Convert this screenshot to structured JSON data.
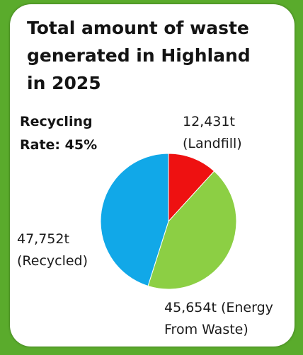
{
  "title": {
    "line1": "Total amount of waste",
    "line2": "generated in Highland",
    "line3": "in 2025"
  },
  "recycling_rate": {
    "line1": "Recycling",
    "line2": "Rate: 45%"
  },
  "colors": {
    "background": "#5aab2c",
    "landfill": "#ee1111",
    "energy_from_waste": "#8ccf44",
    "recycled": "#11a8e8"
  },
  "chart_data": {
    "type": "pie",
    "slices": [
      {
        "label_value": "12,431t",
        "label_name": "(Landfill)",
        "value": 12431,
        "color": "#ee1111"
      },
      {
        "label_value": "45,654t (Energy",
        "label_name": "From Waste)",
        "value": 45654,
        "color": "#8ccf44"
      },
      {
        "label_value": "47,752t",
        "label_name": "(Recycled)",
        "value": 47752,
        "color": "#11a8e8"
      }
    ],
    "title": "Total amount of waste generated in Highland in 2025"
  }
}
